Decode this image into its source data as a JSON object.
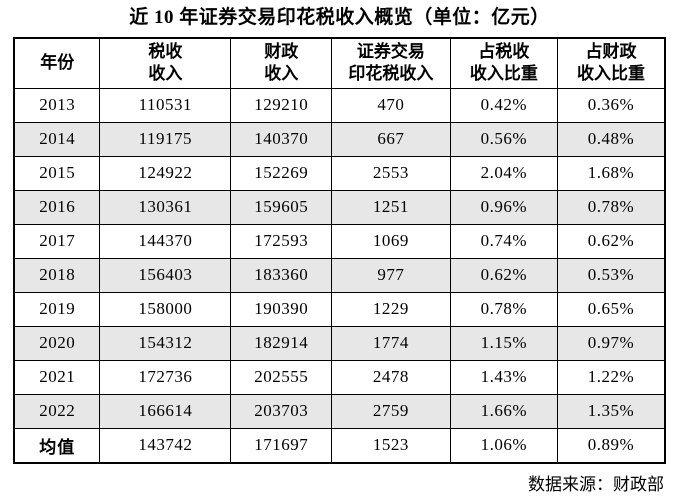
{
  "page": {
    "title": "近 10 年证券交易印花税收入概览（单位：亿元）",
    "source_note": "数据来源：财政部"
  },
  "table": {
    "headers": [
      "年份",
      "税收\n收入",
      "财政\n收入",
      "证券交易\n印花税收入",
      "占税收\n收入比重",
      "占财政\n收入比重"
    ],
    "rows": [
      [
        "2013",
        "110531",
        "129210",
        "470",
        "0.42%",
        "0.36%"
      ],
      [
        "2014",
        "119175",
        "140370",
        "667",
        "0.56%",
        "0.48%"
      ],
      [
        "2015",
        "124922",
        "152269",
        "2553",
        "2.04%",
        "1.68%"
      ],
      [
        "2016",
        "130361",
        "159605",
        "1251",
        "0.96%",
        "0.78%"
      ],
      [
        "2017",
        "144370",
        "172593",
        "1069",
        "0.74%",
        "0.62%"
      ],
      [
        "2018",
        "156403",
        "183360",
        "977",
        "0.62%",
        "0.53%"
      ],
      [
        "2019",
        "158000",
        "190390",
        "1229",
        "0.78%",
        "0.65%"
      ],
      [
        "2020",
        "154312",
        "182914",
        "1774",
        "1.15%",
        "0.97%"
      ],
      [
        "2021",
        "172736",
        "202555",
        "2478",
        "1.43%",
        "1.22%"
      ],
      [
        "2022",
        "166614",
        "203703",
        "2759",
        "1.66%",
        "1.35%"
      ],
      [
        "均值",
        "143742",
        "171697",
        "1523",
        "1.06%",
        "0.89%"
      ]
    ]
  },
  "colors": {
    "row_stripe": "#e7e7e7",
    "border": "#000000",
    "text": "#000000",
    "background": "#ffffff"
  }
}
